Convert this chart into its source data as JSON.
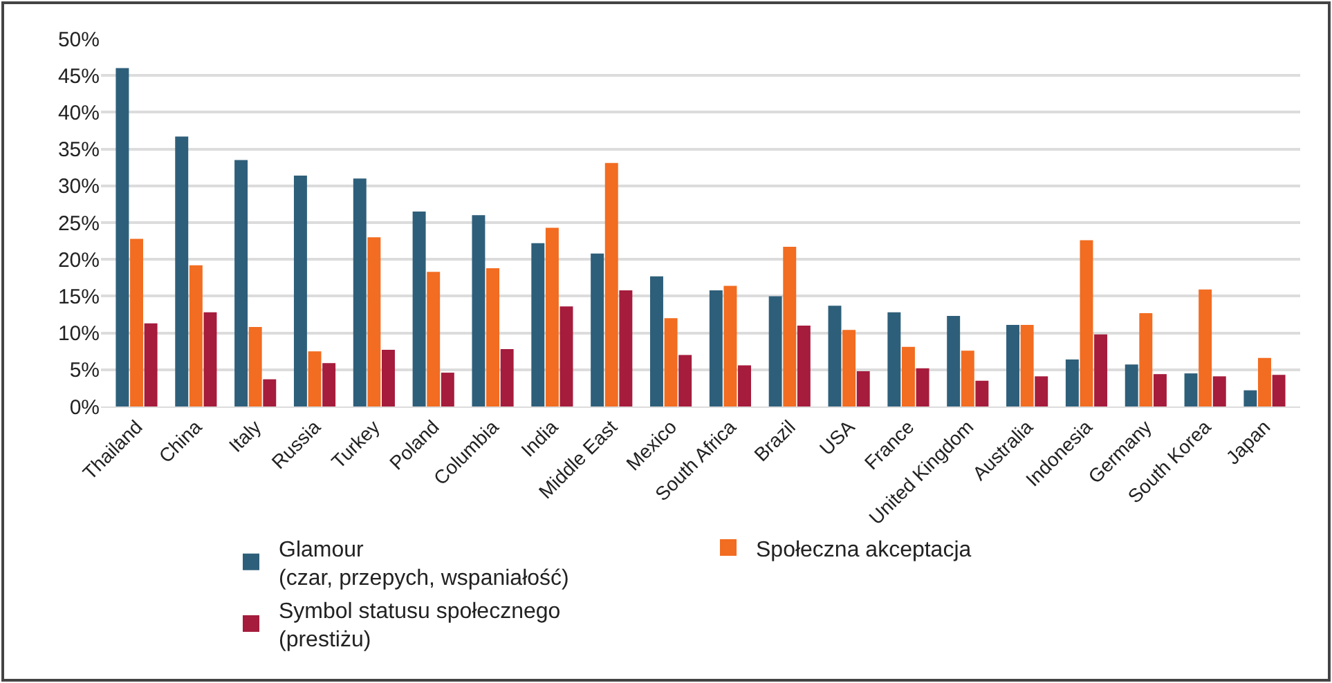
{
  "chart_data": {
    "type": "bar",
    "categories": [
      "Thailand",
      "China",
      "Italy",
      "Russia",
      "Turkey",
      "Poland",
      "Columbia",
      "India",
      "Middle East",
      "Mexico",
      "South Africa",
      "Brazil",
      "USA",
      "France",
      "United Kingdom",
      "Australia",
      "Indonesia",
      "Germany",
      "South Korea",
      "Japan"
    ],
    "series": [
      {
        "name": "Glamour\n(czar, przepych, wspaniałość)",
        "color": "#2e5f7a",
        "values": [
          46,
          36.7,
          33.5,
          31.4,
          31,
          26.5,
          26,
          22.2,
          20.8,
          17.7,
          15.8,
          15,
          13.7,
          12.8,
          12.3,
          11.1,
          6.4,
          5.7,
          4.5,
          2.2
        ]
      },
      {
        "name": "Społeczna akceptacja",
        "color": "#f26c21",
        "values": [
          22.8,
          19.2,
          10.8,
          7.5,
          23,
          18.3,
          18.8,
          24.3,
          33.1,
          12,
          16.4,
          21.7,
          10.4,
          8.1,
          7.6,
          11.1,
          22.6,
          12.7,
          15.9,
          6.6
        ]
      },
      {
        "name": "Symbol statusu społecznego\n(prestiżu)",
        "color": "#a51c3c",
        "values": [
          11.3,
          12.8,
          3.7,
          5.9,
          7.7,
          4.6,
          7.8,
          13.6,
          15.8,
          7,
          5.6,
          11,
          4.8,
          5.2,
          3.5,
          4.1,
          9.8,
          4.4,
          4.1,
          4.3
        ]
      }
    ],
    "ylim": [
      0,
      50
    ],
    "yticks": [
      {
        "value": 0,
        "label": "0%"
      },
      {
        "value": 5,
        "label": "5%"
      },
      {
        "value": 10,
        "label": "10%"
      },
      {
        "value": 15,
        "label": "15%"
      },
      {
        "value": 20,
        "label": "20%"
      },
      {
        "value": 25,
        "label": "25%"
      },
      {
        "value": 30,
        "label": "30%"
      },
      {
        "value": 35,
        "label": "35%"
      },
      {
        "value": 40,
        "label": "40%"
      },
      {
        "value": 45,
        "label": "45%"
      },
      {
        "value": 50,
        "label": "50%"
      }
    ],
    "grid": "y",
    "legend": "bottom"
  }
}
